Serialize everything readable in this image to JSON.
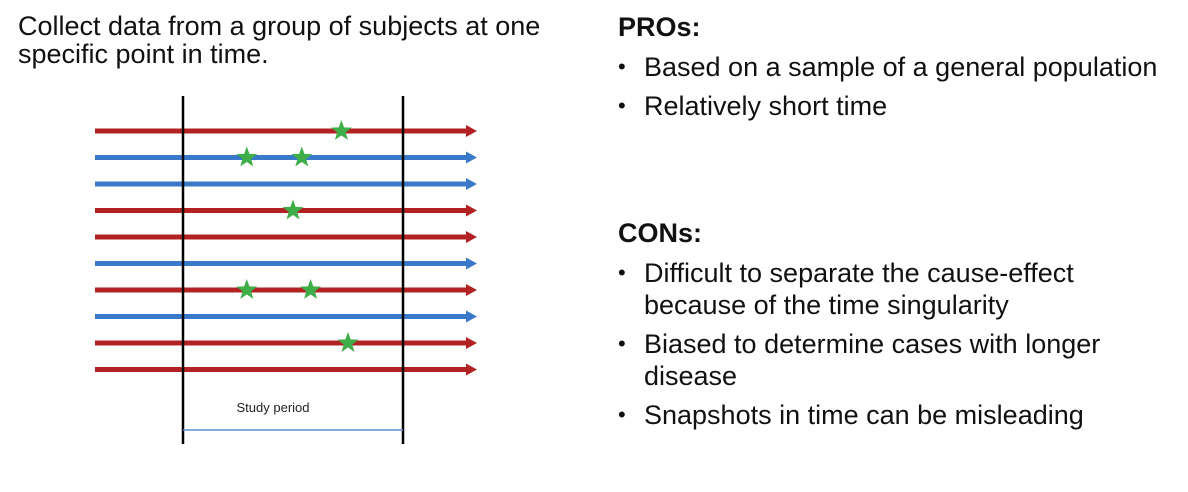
{
  "intro_text": "Collect data from a group of subjects at one specific point in time.",
  "diagram": {
    "study_period_label": "Study period",
    "colors": {
      "red": "#b22222",
      "blue": "#3a78c9",
      "star": "#3fae49",
      "boundary": "#000000",
      "span_line": "#5b8fd0"
    },
    "lines": [
      {
        "color": "red",
        "stars": [
          0.72
        ]
      },
      {
        "color": "blue",
        "stars": [
          0.29,
          0.54
        ]
      },
      {
        "color": "blue",
        "stars": []
      },
      {
        "color": "red",
        "stars": [
          0.5
        ]
      },
      {
        "color": "red",
        "stars": []
      },
      {
        "color": "blue",
        "stars": []
      },
      {
        "color": "red",
        "stars": [
          0.29,
          0.58
        ]
      },
      {
        "color": "blue",
        "stars": []
      },
      {
        "color": "red",
        "stars": [
          0.75
        ]
      },
      {
        "color": "red",
        "stars": []
      }
    ]
  },
  "pros": {
    "heading": "PROs:",
    "items": [
      "Based on a sample of a general population",
      "Relatively short time"
    ]
  },
  "cons": {
    "heading": "CONs:",
    "items": [
      "Difficult to separate the cause-effect because of the time singularity",
      "Biased to determine cases with longer disease",
      "Snapshots in time can be misleading"
    ]
  },
  "bullet_glyph": "•"
}
